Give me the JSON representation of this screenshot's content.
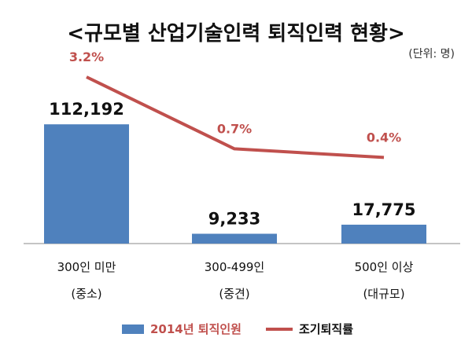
{
  "title": "<규모별 산업기술인력 퇴직인력 현황>",
  "unit": "(단위: 명)",
  "colors": {
    "bar": "#4F81BD",
    "line": "#C0504D",
    "bar_label": "#111111",
    "line_label": "#C0504D"
  },
  "chart_data": {
    "type": "bar",
    "title": "<규모별 산업기술인력 퇴직인력 현황>",
    "categories": [
      {
        "line1": "300인 미만",
        "line2": "(중소)"
      },
      {
        "line1": "300-499인",
        "line2": "(중견)"
      },
      {
        "line1": "500인 이상",
        "line2": "(대규모)"
      }
    ],
    "series": [
      {
        "name": "2014년 퇴직인원",
        "type": "bar",
        "values": [
          112192,
          9233,
          17775
        ],
        "labels": [
          "112,192",
          "9,233",
          "17,775"
        ]
      },
      {
        "name": "조기퇴직률",
        "type": "line",
        "values": [
          3.2,
          0.7,
          0.4
        ],
        "labels": [
          "3.2%",
          "0.7%",
          "0.4%"
        ]
      }
    ],
    "bar_ylim": [
      0,
      170000
    ],
    "line_ylim": [
      0,
      3.6
    ],
    "grid": false,
    "legend_position": "bottom"
  }
}
